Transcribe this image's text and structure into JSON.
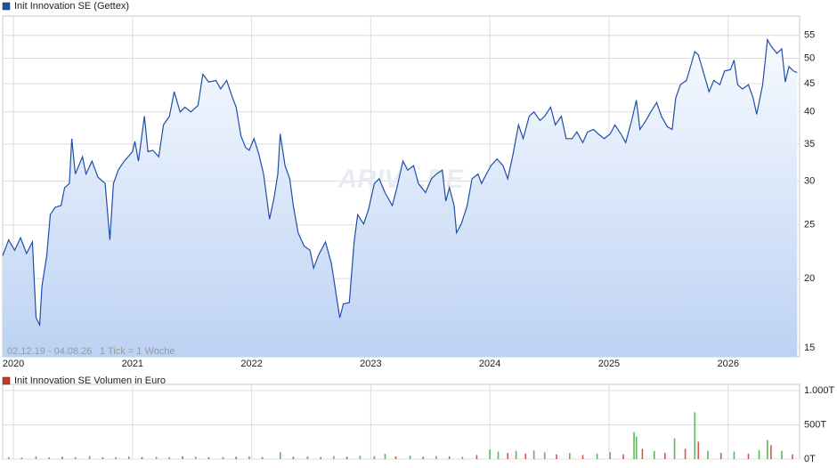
{
  "chart_data": [
    {
      "type": "line",
      "title": "Init Innovation SE (Gettex)",
      "annotations": [
        "02.12.19 - 04.08.26",
        "1 Tick = 1 Woche"
      ],
      "watermark": "ARIVA.DE",
      "log_scale": true,
      "grid": true,
      "color": "#1f4fa8",
      "legend_color": "#1f4fa8",
      "xlim": [
        2019.91,
        2026.6
      ],
      "xticks": [
        2020,
        2021,
        2022,
        2023,
        2024,
        2025,
        2026
      ],
      "ylim": [
        14.45,
        59.6
      ],
      "yticks": [
        15,
        20,
        25,
        30,
        35,
        40,
        45,
        50,
        55
      ],
      "x": [
        2019.91,
        2019.96,
        2020.01,
        2020.06,
        2020.11,
        2020.16,
        2020.19,
        2020.22,
        2020.24,
        2020.28,
        2020.31,
        2020.35,
        2020.4,
        2020.43,
        2020.47,
        2020.49,
        2020.52,
        2020.58,
        2020.61,
        2020.66,
        2020.71,
        2020.77,
        2020.81,
        2020.84,
        2020.88,
        2020.93,
        2021.0,
        2021.02,
        2021.05,
        2021.1,
        2021.13,
        2021.17,
        2021.22,
        2021.26,
        2021.31,
        2021.35,
        2021.4,
        2021.44,
        2021.49,
        2021.55,
        2021.59,
        2021.64,
        2021.7,
        2021.74,
        2021.79,
        2021.84,
        2021.87,
        2021.91,
        2021.95,
        2021.98,
        2022.02,
        2022.06,
        2022.1,
        2022.15,
        2022.19,
        2022.22,
        2022.24,
        2022.28,
        2022.32,
        2022.35,
        2022.39,
        2022.44,
        2022.49,
        2022.52,
        2022.56,
        2022.62,
        2022.67,
        2022.71,
        2022.74,
        2022.77,
        2022.82,
        2022.86,
        2022.89,
        2022.94,
        2022.98,
        2023.03,
        2023.07,
        2023.12,
        2023.18,
        2023.22,
        2023.27,
        2023.31,
        2023.36,
        2023.4,
        2023.46,
        2023.51,
        2023.55,
        2023.6,
        2023.63,
        2023.66,
        2023.7,
        2023.72,
        2023.76,
        2023.81,
        2023.85,
        2023.9,
        2023.93,
        2023.97,
        2024.01,
        2024.06,
        2024.11,
        2024.15,
        2024.19,
        2024.24,
        2024.28,
        2024.33,
        2024.37,
        2024.42,
        2024.46,
        2024.51,
        2024.55,
        2024.6,
        2024.64,
        2024.69,
        2024.73,
        2024.78,
        2024.82,
        2024.87,
        2024.91,
        2024.96,
        2025.01,
        2025.05,
        2025.1,
        2025.14,
        2025.19,
        2025.23,
        2025.26,
        2025.31,
        2025.35,
        2025.4,
        2025.44,
        2025.49,
        2025.53,
        2025.56,
        2025.6,
        2025.65,
        2025.69,
        2025.72,
        2025.75,
        2025.79,
        2025.84,
        2025.88,
        2025.93,
        2025.97,
        2026.02,
        2026.05,
        2026.08,
        2026.12,
        2026.17,
        2026.21,
        2026.24,
        2026.29,
        2026.33,
        2026.36,
        2026.41,
        2026.45,
        2026.48,
        2026.51,
        2026.55,
        2026.58
      ],
      "series": [
        {
          "name": "Init Innovation SE (Gettex)",
          "color": "#1f4fa8",
          "values": [
            22.0,
            23.5,
            22.5,
            23.7,
            22.2,
            23.3,
            17.0,
            16.5,
            19.4,
            22.0,
            26.1,
            26.9,
            27.1,
            29.2,
            29.7,
            35.8,
            30.9,
            33.2,
            30.9,
            32.6,
            30.5,
            29.7,
            23.5,
            29.7,
            31.4,
            32.6,
            33.9,
            35.4,
            32.6,
            39.3,
            33.9,
            34.1,
            33.2,
            37.9,
            39.3,
            43.5,
            40.0,
            40.8,
            40.0,
            41.1,
            46.8,
            45.3,
            45.6,
            44.0,
            45.6,
            42.4,
            40.8,
            36.2,
            34.5,
            34.1,
            35.8,
            33.6,
            30.9,
            25.6,
            28.1,
            30.9,
            36.5,
            32.0,
            30.3,
            27.1,
            24.2,
            22.9,
            22.5,
            20.9,
            22.0,
            23.3,
            21.3,
            18.7,
            17.0,
            18.0,
            18.1,
            23.3,
            26.1,
            25.1,
            26.6,
            29.7,
            30.3,
            28.6,
            27.1,
            29.2,
            32.6,
            31.4,
            32.0,
            29.7,
            28.6,
            30.3,
            30.9,
            31.4,
            27.6,
            29.2,
            27.1,
            24.2,
            25.1,
            27.1,
            30.3,
            30.9,
            29.7,
            30.9,
            32.0,
            32.9,
            32.0,
            30.3,
            33.2,
            37.9,
            35.8,
            39.3,
            40.0,
            38.6,
            39.3,
            40.8,
            37.9,
            39.3,
            35.8,
            35.8,
            36.8,
            35.2,
            36.8,
            37.2,
            36.5,
            35.8,
            36.5,
            37.9,
            36.5,
            35.2,
            38.6,
            42.0,
            37.2,
            38.6,
            40.0,
            41.6,
            39.3,
            37.6,
            37.2,
            42.4,
            44.8,
            45.6,
            48.8,
            51.4,
            50.7,
            47.4,
            43.5,
            45.6,
            44.8,
            47.4,
            47.7,
            49.6,
            44.8,
            44.0,
            44.8,
            42.4,
            39.6,
            44.8,
            54.0,
            52.6,
            51.0,
            52.0,
            45.3,
            48.3,
            47.4,
            47.1
          ]
        }
      ]
    },
    {
      "type": "bar",
      "title": "Init Innovation SE Volumen in Euro",
      "legend_color": "#c0392b",
      "grid": true,
      "xlim": [
        2019.91,
        2026.6
      ],
      "ylim": [
        0,
        1090
      ],
      "yticks": [
        {
          "value": 0,
          "label": "0T"
        },
        {
          "value": 500,
          "label": "500T"
        },
        {
          "value": 1000,
          "label": "1.000T"
        }
      ],
      "x": [
        2019.96,
        2020.07,
        2020.19,
        2020.3,
        2020.41,
        2020.52,
        2020.64,
        2020.75,
        2020.86,
        2020.97,
        2021.08,
        2021.2,
        2021.31,
        2021.42,
        2021.53,
        2021.64,
        2021.76,
        2021.87,
        2021.98,
        2022.09,
        2022.24,
        2022.35,
        2022.47,
        2022.58,
        2022.69,
        2022.8,
        2022.91,
        2023.03,
        2023.12,
        2023.21,
        2023.33,
        2023.44,
        2023.55,
        2023.66,
        2023.77,
        2023.89,
        2024.0,
        2024.07,
        2024.15,
        2024.22,
        2024.3,
        2024.37,
        2024.46,
        2024.56,
        2024.67,
        2024.78,
        2024.9,
        2025.01,
        2025.12,
        2025.21,
        2025.23,
        2025.28,
        2025.38,
        2025.47,
        2025.55,
        2025.64,
        2025.72,
        2025.75,
        2025.83,
        2025.94,
        2026.05,
        2026.17,
        2026.26,
        2026.33,
        2026.36,
        2026.45,
        2026.54
      ],
      "values": [
        30,
        20,
        40,
        25,
        35,
        30,
        45,
        25,
        30,
        40,
        30,
        35,
        30,
        40,
        35,
        25,
        30,
        35,
        40,
        30,
        100,
        35,
        40,
        30,
        45,
        35,
        50,
        45,
        76,
        40,
        50,
        35,
        45,
        40,
        35,
        60,
        140,
        110,
        90,
        120,
        80,
        127,
        100,
        70,
        90,
        60,
        80,
        100,
        70,
        393,
        330,
        150,
        120,
        90,
        304,
        150,
        684,
        253,
        120,
        90,
        110,
        80,
        130,
        279,
        203,
        120,
        70
      ],
      "colors": [
        "#5cb85c",
        "#d9534f",
        "#5cb85c",
        "#5cb85c",
        "#d9534f",
        "#5cb85c",
        "#5cb85c",
        "#d9534f",
        "#5cb85c",
        "#5cb85c",
        "#d9534f",
        "#5cb85c",
        "#5cb85c",
        "#d9534f",
        "#5cb85c",
        "#d9534f",
        "#5cb85c",
        "#d9534f",
        "#5cb85c",
        "#d9534f",
        "#5cb85c",
        "#d9534f",
        "#5cb85c",
        "#d9534f",
        "#5cb85c",
        "#d9534f",
        "#5cb85c",
        "#5cb85c",
        "#5cb85c",
        "#d9534f",
        "#5cb85c",
        "#d9534f",
        "#5cb85c",
        "#d9534f",
        "#5cb85c",
        "#d9534f",
        "#5cb85c",
        "#5cb85c",
        "#d9534f",
        "#5cb85c",
        "#d9534f",
        "#5cb85c",
        "#5cb85c",
        "#d9534f",
        "#5cb85c",
        "#d9534f",
        "#5cb85c",
        "#5cb85c",
        "#d9534f",
        "#5cb85c",
        "#5cb85c",
        "#d9534f",
        "#5cb85c",
        "#d9534f",
        "#5cb85c",
        "#d9534f",
        "#5cb85c",
        "#d9534f",
        "#5cb85c",
        "#d9534f",
        "#5cb85c",
        "#d9534f",
        "#5cb85c",
        "#5cb85c",
        "#d9534f",
        "#5cb85c",
        "#d9534f"
      ]
    }
  ]
}
